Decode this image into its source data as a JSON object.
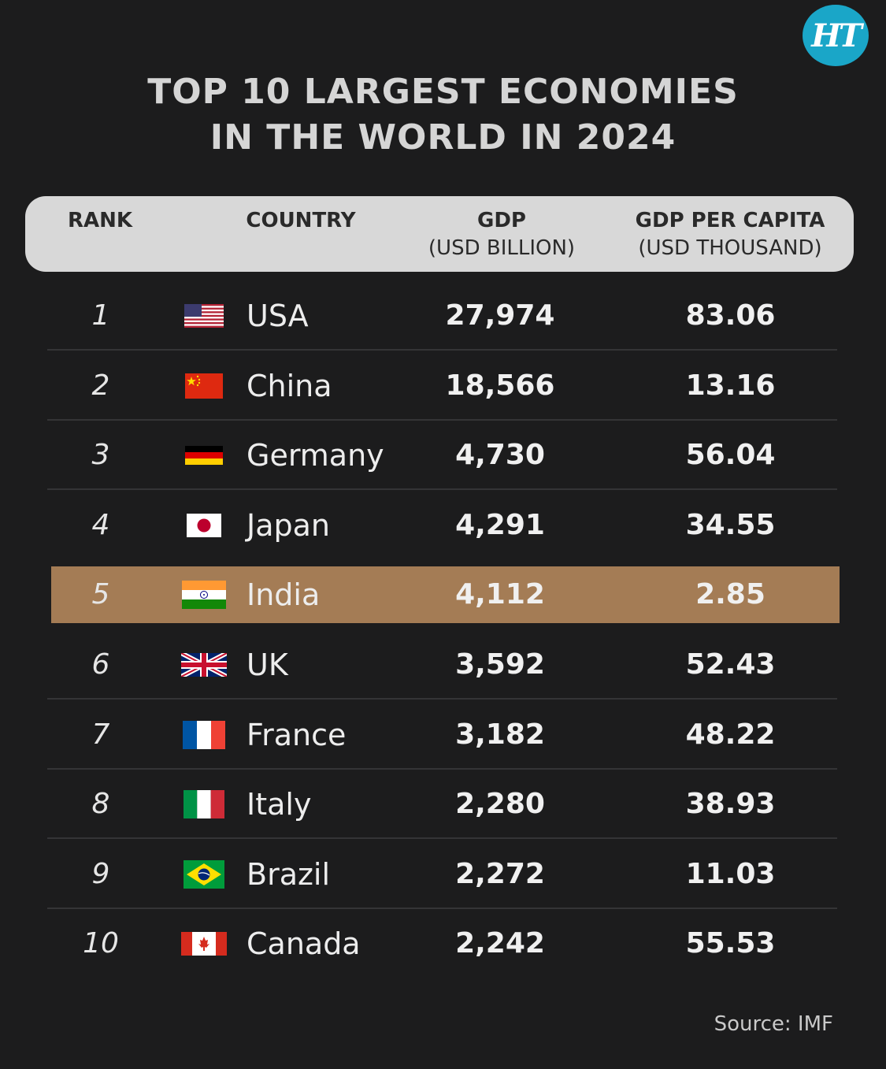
{
  "brand": {
    "logo_text": "HT"
  },
  "title_lines": [
    "TOP 10 LARGEST ECONOMIES",
    "IN THE WORLD IN 2024"
  ],
  "columns": {
    "rank": "RANK",
    "country": "COUNTRY",
    "gdp": "GDP",
    "gdp_unit": "(USD BILLION)",
    "capita": "GDP PER CAPITA",
    "capita_unit": "(USD THOUSAND)"
  },
  "highlight_color": "#a47c55",
  "rows": [
    {
      "rank": "1",
      "country": "USA",
      "gdp": "27,974",
      "capita": "83.06",
      "flag": "usa-flag-icon"
    },
    {
      "rank": "2",
      "country": "China",
      "gdp": "18,566",
      "capita": "13.16",
      "flag": "china-flag-icon"
    },
    {
      "rank": "3",
      "country": "Germany",
      "gdp": "4,730",
      "capita": "56.04",
      "flag": "germany-flag-icon"
    },
    {
      "rank": "4",
      "country": "Japan",
      "gdp": "4,291",
      "capita": "34.55",
      "flag": "japan-flag-icon"
    },
    {
      "rank": "5",
      "country": "India",
      "gdp": "4,112",
      "capita": "2.85",
      "flag": "india-flag-icon",
      "highlight": true
    },
    {
      "rank": "6",
      "country": "UK",
      "gdp": "3,592",
      "capita": "52.43",
      "flag": "uk-flag-icon"
    },
    {
      "rank": "7",
      "country": "France",
      "gdp": "3,182",
      "capita": "48.22",
      "flag": "france-flag-icon"
    },
    {
      "rank": "8",
      "country": "Italy",
      "gdp": "2,280",
      "capita": "38.93",
      "flag": "italy-flag-icon"
    },
    {
      "rank": "9",
      "country": "Brazil",
      "gdp": "2,272",
      "capita": "11.03",
      "flag": "brazil-flag-icon"
    },
    {
      "rank": "10",
      "country": "Canada",
      "gdp": "2,242",
      "capita": "55.53",
      "flag": "canada-flag-icon"
    }
  ],
  "source": "Source: IMF"
}
